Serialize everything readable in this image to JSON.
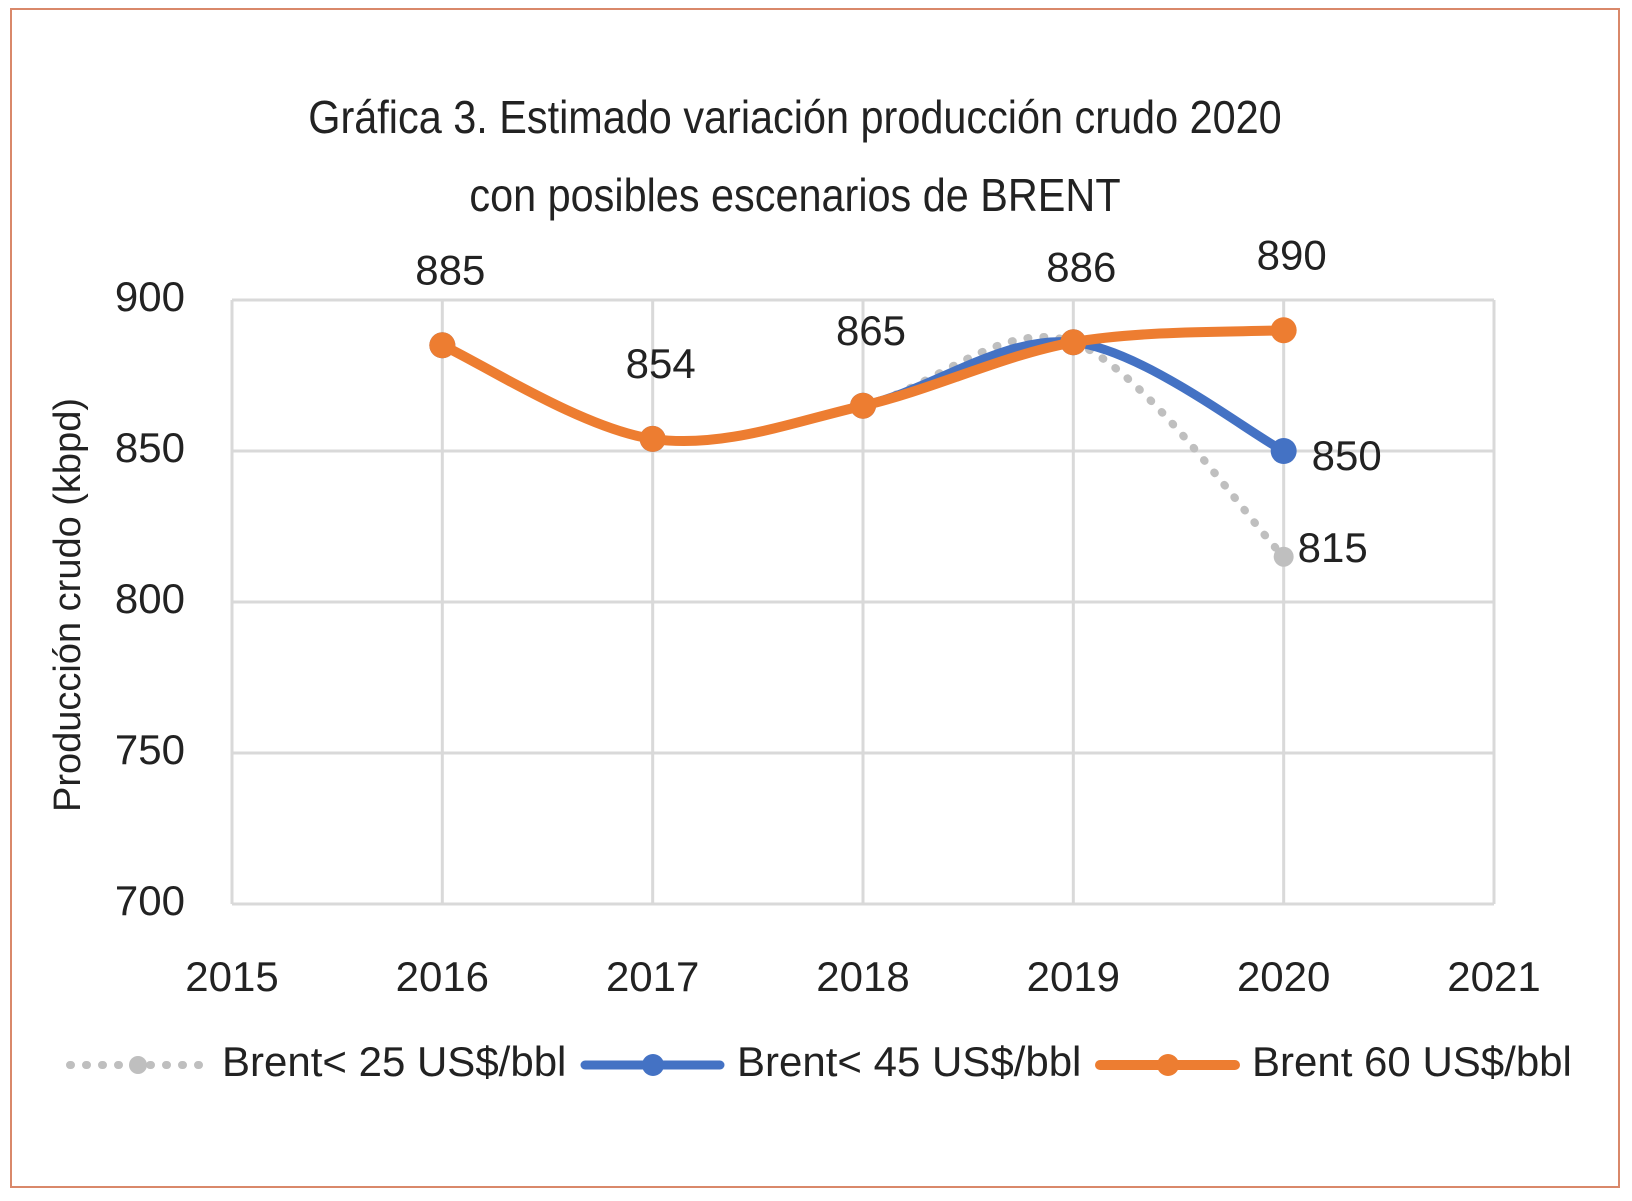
{
  "chart_data": {
    "type": "line",
    "title": "Gráfica 3. Estimado variación producción crudo 2020 con posibles escenarios de BRENT",
    "y_label": "Producción crudo (kbpd)",
    "x": [
      2016,
      2017,
      2018,
      2019,
      2020
    ],
    "series": [
      {
        "name": "Brent< 25 US$/bbl",
        "color": "#bfbfbf",
        "style": "dotted",
        "values": [
          885,
          854,
          865,
          886,
          815
        ]
      },
      {
        "name": "Brent< 45 US$/bbl",
        "color": "#4472c4",
        "style": "solid",
        "values": [
          885,
          854,
          865,
          886,
          850
        ]
      },
      {
        "name": "Brent 60 US$/bbl",
        "color": "#ed7d31",
        "style": "solid",
        "values": [
          885,
          854,
          865,
          886,
          890
        ]
      }
    ],
    "xlim": [
      2015,
      2021
    ],
    "xticks": [
      2015,
      2016,
      2017,
      2018,
      2019,
      2020,
      2021
    ],
    "ylim": [
      700,
      900
    ],
    "yticks": [
      700,
      750,
      800,
      850,
      900
    ],
    "grid": true,
    "legend": "bottom"
  }
}
